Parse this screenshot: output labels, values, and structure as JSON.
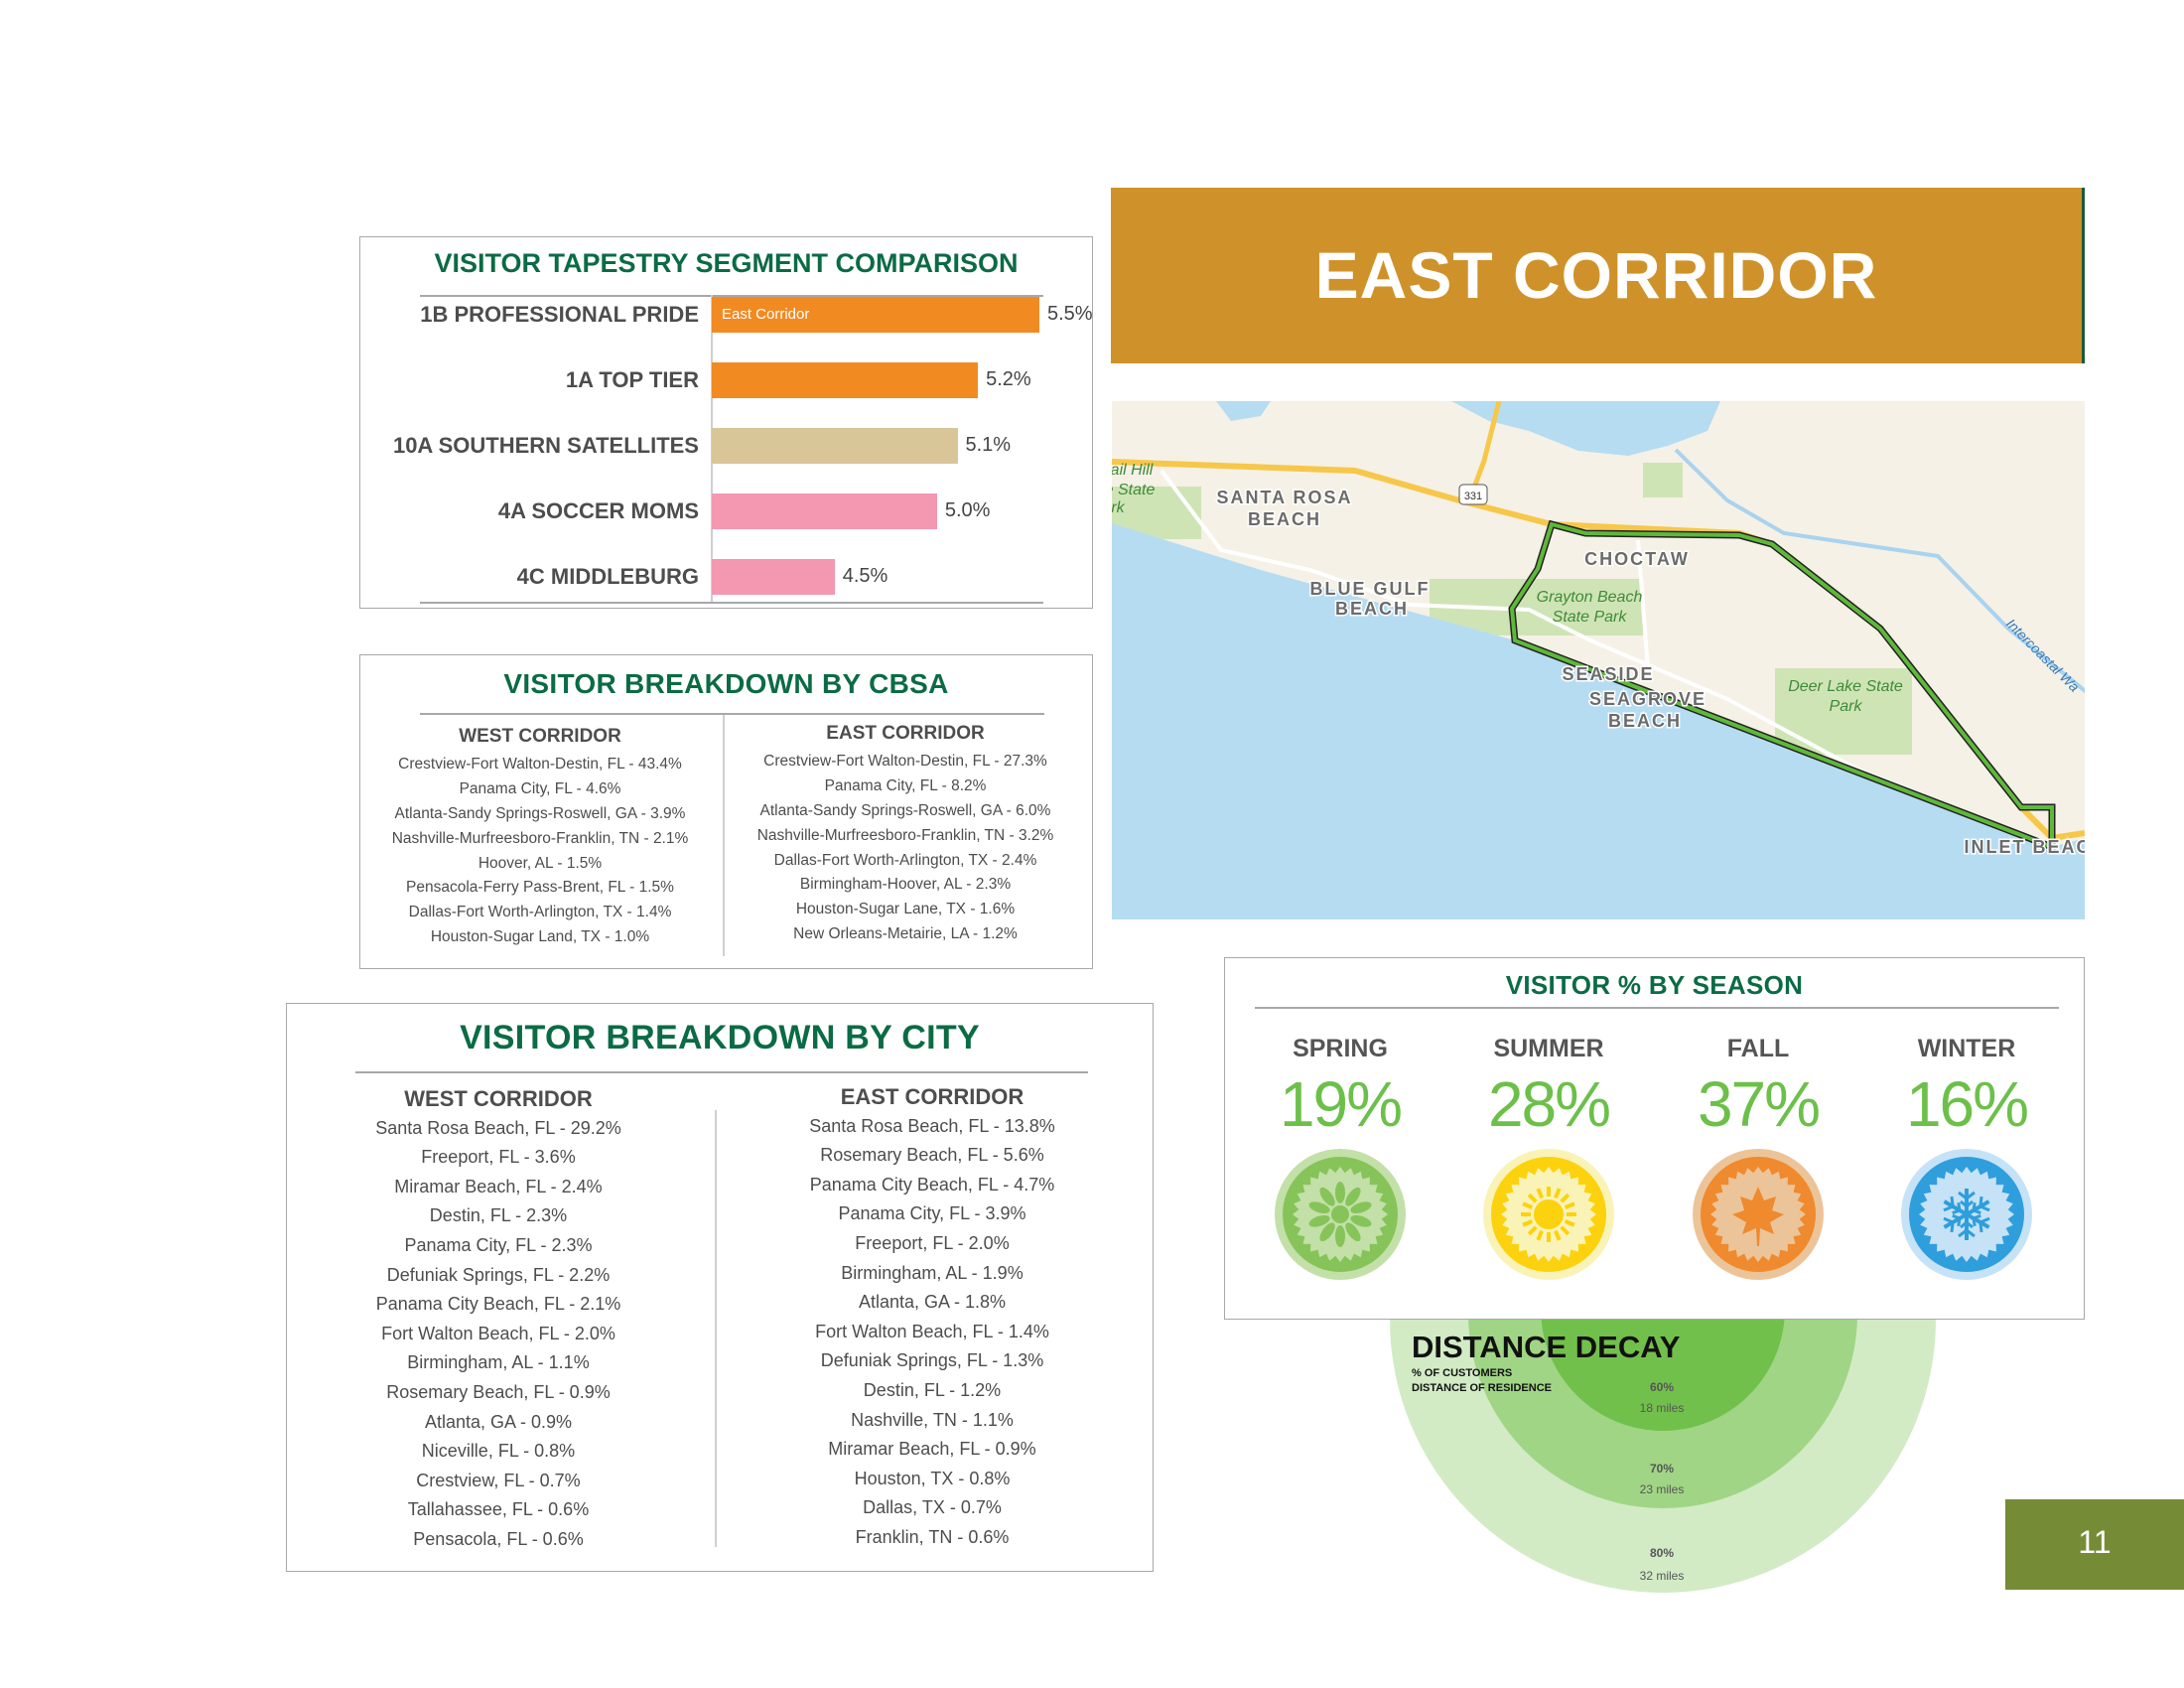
{
  "header": {
    "title": "EAST CORRIDOR"
  },
  "map": {
    "labels": {
      "santa_rosa_1": "SANTA ROSA",
      "santa_rosa_2": "BEACH",
      "choctaw": "CHOCTAW",
      "blue_gulf_1": "BLUE GULF",
      "blue_gulf_2": "BEACH",
      "grayton_1": "Grayton Beach",
      "grayton_2": "State Park",
      "seaside": "SEASIDE",
      "seagrove_1": "SEAGROVE",
      "seagrove_2": "BEACH",
      "deer_lake_1": "Deer Lake State",
      "deer_lake_2": "Park",
      "inlet": "INLET BEACH",
      "intercoastal": "Intercoastal Wa",
      "hill_1": "ail Hill",
      "hill_2": "e State",
      "hill_3": "rk",
      "route": "331"
    }
  },
  "tapestry": {
    "title": "VISITOR TAPESTRY SEGMENT COMPARISON",
    "legend_label": "East Corridor"
  },
  "chart_data": {
    "type": "bar",
    "orientation": "horizontal",
    "title": "VISITOR TAPESTRY SEGMENT COMPARISON",
    "series_name": "East Corridor",
    "categories": [
      "1B PROFESSIONAL PRIDE",
      "1A TOP TIER",
      "10A SOUTHERN SATELLITES",
      "4A SOCCER MOMS",
      "4C MIDDLEBURG"
    ],
    "values": [
      5.5,
      5.2,
      5.1,
      5.0,
      4.5
    ],
    "value_labels": [
      "5.5%",
      "5.2%",
      "5.1%",
      "5.0%",
      "4.5%"
    ],
    "colors": [
      "#f28a22",
      "#f28a22",
      "#d8c598",
      "#f497b1",
      "#f497b1"
    ],
    "xlim": [
      3.9,
      5.5
    ]
  },
  "cbsa": {
    "title": "VISITOR BREAKDOWN BY CBSA",
    "west": {
      "heading": "WEST CORRIDOR",
      "items": [
        "Crestview-Fort Walton-Destin, FL - 43.4%",
        "Panama City, FL - 4.6%",
        "Atlanta-Sandy Springs-Roswell, GA - 3.9%",
        "Nashville-Murfreesboro-Franklin, TN - 2.1%",
        "Hoover, AL - 1.5%",
        "Pensacola-Ferry Pass-Brent, FL - 1.5%",
        "Dallas-Fort Worth-Arlington, TX - 1.4%",
        "Houston-Sugar Land, TX - 1.0%"
      ]
    },
    "east": {
      "heading": "EAST CORRIDOR",
      "items": [
        "Crestview-Fort Walton-Destin, FL - 27.3%",
        "Panama City, FL - 8.2%",
        "Atlanta-Sandy Springs-Roswell, GA - 6.0%",
        "Nashville-Murfreesboro-Franklin, TN - 3.2%",
        "Dallas-Fort Worth-Arlington, TX - 2.4%",
        "Birmingham-Hoover, AL - 2.3%",
        "Houston-Sugar Lane, TX - 1.6%",
        "New Orleans-Metairie, LA - 1.2%"
      ]
    }
  },
  "city": {
    "title": "VISITOR BREAKDOWN BY CITY",
    "west": {
      "heading": "WEST CORRIDOR",
      "items": [
        "Santa Rosa Beach, FL - 29.2%",
        "Freeport, FL - 3.6%",
        "Miramar Beach, FL - 2.4%",
        "Destin, FL - 2.3%",
        "Panama City, FL - 2.3%",
        "Defuniak Springs, FL - 2.2%",
        "Panama City Beach, FL - 2.1%",
        "Fort Walton Beach, FL - 2.0%",
        "Birmingham, AL - 1.1%",
        "Rosemary Beach, FL - 0.9%",
        "Atlanta, GA - 0.9%",
        "Niceville, FL - 0.8%",
        "Crestview, FL - 0.7%",
        "Tallahassee, FL - 0.6%",
        "Pensacola, FL - 0.6%"
      ]
    },
    "east": {
      "heading": "EAST CORRIDOR",
      "items": [
        "Santa Rosa Beach, FL - 13.8%",
        "Rosemary Beach, FL - 5.6%",
        "Panama City Beach, FL - 4.7%",
        "Panama City, FL - 3.9%",
        "Freeport, FL - 2.0%",
        "Birmingham, AL - 1.9%",
        "Atlanta, GA - 1.8%",
        "Fort Walton Beach, FL - 1.4%",
        "Defuniak Springs, FL - 1.3%",
        "Destin, FL - 1.2%",
        "Nashville, TN - 1.1%",
        "Miramar Beach, FL - 0.9%",
        "Houston, TX - 0.8%",
        "Dallas, TX - 0.7%",
        "Franklin, TN - 0.6%"
      ]
    }
  },
  "season": {
    "title": "VISITOR % BY SEASON",
    "items": [
      {
        "name": "SPRING",
        "pct": "19%",
        "icon": "flower-icon",
        "outer": "#c3e0a8",
        "ring": "#86c45a",
        "inner": "#c3e0a8",
        "glyph": "#86c45a"
      },
      {
        "name": "SUMMER",
        "pct": "28%",
        "icon": "sun-icon",
        "outer": "#faf3b8",
        "ring": "#fcd20f",
        "inner": "#faf3b8",
        "glyph": "#fcd20f"
      },
      {
        "name": "FALL",
        "pct": "37%",
        "icon": "maple-leaf-icon",
        "outer": "#ecc499",
        "ring": "#ef8a2e",
        "inner": "#ecc499",
        "glyph": "#ef8a2e"
      },
      {
        "name": "WINTER",
        "pct": "16%",
        "icon": "snowflake-icon",
        "outer": "#c6e2f6",
        "ring": "#2f9edc",
        "inner": "#c6e2f6",
        "glyph": "#2f9edc"
      }
    ]
  },
  "distance": {
    "title": "DISTANCE DECAY",
    "subtitle_1": "% OF CUSTOMERS",
    "subtitle_2": "DISTANCE OF RESIDENCE",
    "rings": [
      {
        "pct": "60%",
        "miles": "18 miles",
        "color": "#72c04c"
      },
      {
        "pct": "70%",
        "miles": "23 miles",
        "color": "#a0d585"
      },
      {
        "pct": "80%",
        "miles": "32 miles",
        "color": "#d2ebc5"
      }
    ]
  },
  "page": {
    "number": "11"
  }
}
